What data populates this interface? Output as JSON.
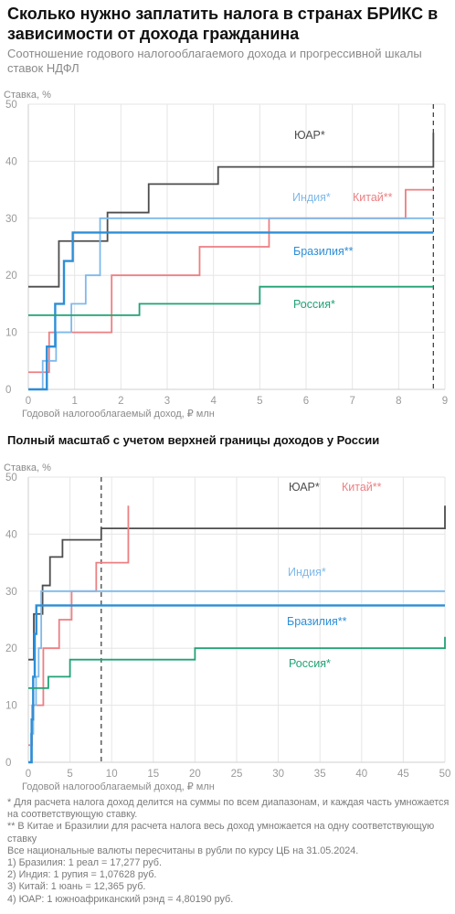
{
  "title": "Сколько нужно заплатить налога в странах БРИКС в зависимости от дохода гражданина",
  "subtitle": "Соотношение годового налогооблагаемого дохода и прогрессивной шкалы ставок НДФЛ",
  "section2_title": "Полный масштаб с учетом верхней границы доходов у России",
  "colors": {
    "south_africa": "#4d4d4d",
    "china": "#ec7f82",
    "india": "#7fb9ea",
    "brazil": "#2d8ed6",
    "russia": "#21a274",
    "grid": "#e6e6e6",
    "axis": "#cfcfcf",
    "marker": "#444444"
  },
  "chart_data": [
    {
      "type": "line",
      "step": true,
      "ylabel": "Ставка, %",
      "xlabel": "Годовой налогооблагаемый доход, ₽ млн",
      "xlim": [
        0,
        9
      ],
      "ylim": [
        0,
        50
      ],
      "xticks": [
        0,
        1,
        2,
        3,
        4,
        5,
        6,
        7,
        8,
        9
      ],
      "yticks": [
        0,
        10,
        20,
        30,
        40,
        50
      ],
      "grid": true,
      "marker_x": 8.75,
      "series": [
        {
          "key": "south_africa",
          "name": "ЮАР*",
          "x": [
            0,
            0.45,
            0.66,
            1.13,
            1.71,
            2.1,
            2.6,
            3.24,
            4.1,
            8.75,
            8.75
          ],
          "y": [
            18,
            18,
            26,
            26,
            31,
            31,
            36,
            36,
            39,
            41,
            45
          ]
        },
        {
          "key": "china",
          "name": "Китай**",
          "x": [
            0,
            0.45,
            1.8,
            3.7,
            5.2,
            8.15,
            8.75
          ],
          "y": [
            3,
            10,
            20,
            25,
            30,
            35,
            35
          ]
        },
        {
          "key": "india",
          "name": "Индия*",
          "x": [
            0,
            0.31,
            0.6,
            0.93,
            1.24,
            1.55,
            8.75
          ],
          "y": [
            0,
            5,
            10,
            15,
            20,
            30,
            30
          ]
        },
        {
          "key": "brazil",
          "name": "Бразилия**",
          "x": [
            0,
            0.4,
            0.58,
            0.77,
            0.96,
            8.75
          ],
          "y": [
            0,
            7.5,
            15,
            22.5,
            27.5,
            27.5
          ]
        },
        {
          "key": "russia",
          "name": "Россия*",
          "x": [
            0,
            2.4,
            5.0,
            8.75
          ],
          "y": [
            13,
            15,
            18,
            18
          ]
        }
      ]
    },
    {
      "type": "line",
      "step": true,
      "ylabel": "Ставка, %",
      "xlabel": "Годовой налогооблагаемый доход, ₽ млн",
      "xlim": [
        0,
        50
      ],
      "ylim": [
        0,
        50
      ],
      "xticks": [
        0,
        5,
        10,
        15,
        20,
        25,
        30,
        35,
        40,
        45,
        50
      ],
      "yticks": [
        0,
        10,
        20,
        30,
        40,
        50
      ],
      "grid": true,
      "marker_x": 8.75,
      "series": [
        {
          "key": "south_africa",
          "name": "ЮАР*",
          "x": [
            0,
            0.45,
            0.66,
            1.13,
            1.71,
            2.1,
            2.6,
            3.24,
            4.1,
            8.75,
            50
          ],
          "y": [
            18,
            18,
            26,
            26,
            31,
            31,
            36,
            36,
            39,
            41,
            45
          ]
        },
        {
          "key": "china",
          "name": "Китай**",
          "x": [
            0,
            0.45,
            1.8,
            3.7,
            5.2,
            8.15,
            12.0
          ],
          "y": [
            3,
            10,
            20,
            25,
            30,
            35,
            45
          ]
        },
        {
          "key": "india",
          "name": "Индия*",
          "x": [
            0,
            0.31,
            0.6,
            0.93,
            1.24,
            1.55,
            50
          ],
          "y": [
            0,
            5,
            10,
            15,
            20,
            30,
            30
          ]
        },
        {
          "key": "brazil",
          "name": "Бразилия**",
          "x": [
            0,
            0.4,
            0.58,
            0.77,
            0.96,
            50
          ],
          "y": [
            0,
            7.5,
            15,
            22.5,
            27.5,
            27.5
          ]
        },
        {
          "key": "russia",
          "name": "Россия*",
          "x": [
            0,
            2.4,
            5.0,
            20.0,
            50
          ],
          "y": [
            13,
            15,
            18,
            20,
            22
          ]
        }
      ]
    }
  ],
  "footnotes": [
    "* Для расчета налога доход делится на суммы по всем диапазонам, и каждая часть умножается на соответствующую ставку.",
    "** В Китае и Бразилии для расчета налога весь доход умножается на одну соответствующую ставку",
    "Все национальные валюты пересчитаны в рубли по курсу ЦБ на 31.05.2024.",
    "1) Бразилия: 1 реал = 17,277 руб.",
    "2) Индия: 1 рупия = 1,07628 руб.",
    "3) Китай: 1 юань = 12,365 руб.",
    "4) ЮАР: 1 южноафриканский рэнд = 4,80190 руб."
  ]
}
